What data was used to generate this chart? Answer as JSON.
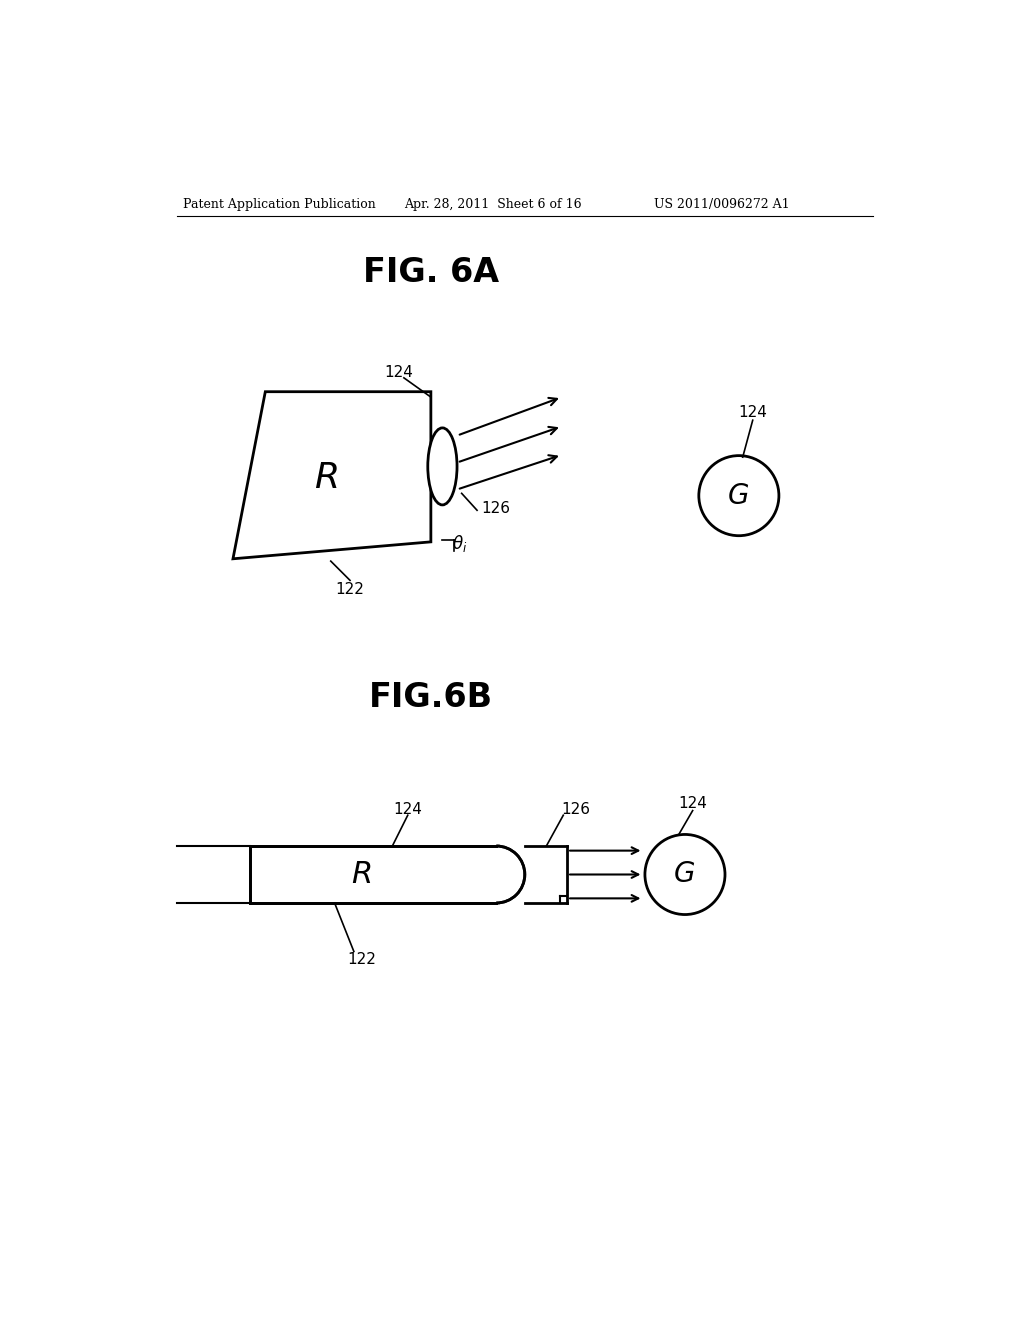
{
  "bg_color": "#ffffff",
  "header_text": "Patent Application Publication",
  "header_date": "Apr. 28, 2011  Sheet 6 of 16",
  "header_patent": "US 2011/0096272 A1",
  "fig6a_title": "FIG. 6A",
  "fig6b_title": "FIG.6B",
  "line_color": "#000000",
  "text_color": "#000000"
}
